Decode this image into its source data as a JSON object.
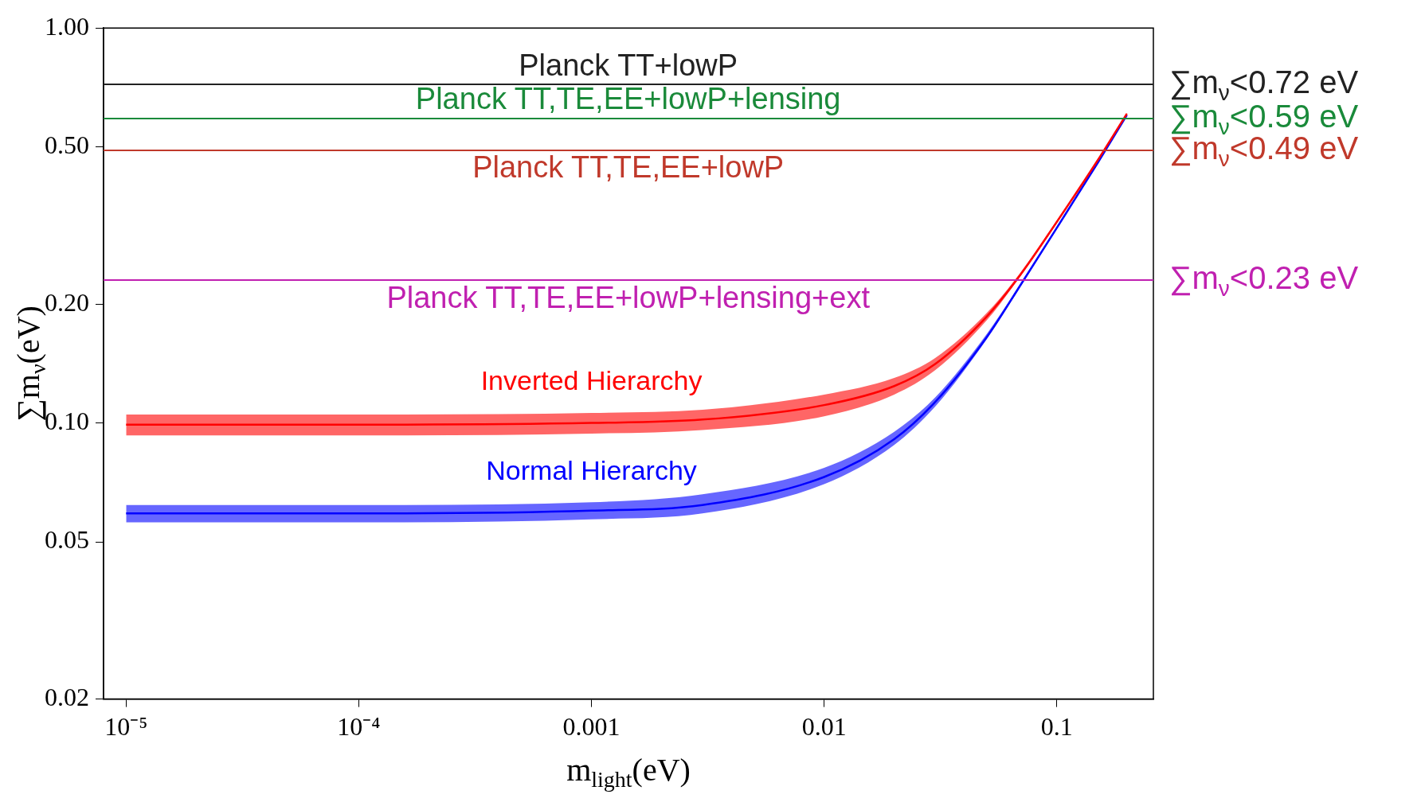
{
  "chart_data": {
    "type": "line",
    "xlabel": "m$_{light}$(eV)",
    "ylabel": "∑m$_{ν}$(eV)",
    "log": "xy",
    "x": [
      1e-05,
      0.0001,
      0.001,
      0.003,
      0.01,
      0.02,
      0.03,
      0.05,
      0.07,
      0.1,
      0.15,
      0.2
    ],
    "xlim": [
      8e-06,
      0.26
    ],
    "ylim": [
      0.02,
      1
    ],
    "xticks": [
      {
        "value": 1e-05,
        "label": "10⁻⁵"
      },
      {
        "value": 0.0001,
        "label": "10⁻⁴"
      },
      0.001,
      0.01,
      0.1
    ],
    "yticks": [
      {
        "value": 0.02,
        "label": "0.02"
      },
      {
        "value": 0.05,
        "label": "0.05"
      },
      {
        "value": 0.1,
        "label": "0.10"
      },
      {
        "value": 0.2,
        "label": "0.20"
      },
      {
        "value": 0.5,
        "label": "0.50"
      },
      {
        "value": 1,
        "label": "1.00"
      }
    ],
    "series": [
      {
        "name": "Inverted Hierarchy",
        "color": "#ff0000",
        "values": [
          0.099,
          0.099,
          0.1,
          0.102,
          0.111,
          0.124,
          0.141,
          0.186,
          0.238,
          0.323,
          0.463,
          0.607
        ],
        "lower": [
          0.093,
          0.093,
          0.094,
          0.096,
          0.104,
          0.118,
          0.136,
          0.182,
          0.236,
          0.32,
          0.462,
          0.605
        ],
        "upper": [
          0.105,
          0.105,
          0.106,
          0.108,
          0.118,
          0.13,
          0.146,
          0.19,
          0.241,
          0.326,
          0.465,
          0.61
        ]
      },
      {
        "name": "Normal Hierarchy",
        "color": "#0000ff",
        "values": [
          0.059,
          0.059,
          0.06,
          0.062,
          0.073,
          0.091,
          0.113,
          0.165,
          0.224,
          0.312,
          0.456,
          0.602
        ],
        "lower": [
          0.056,
          0.056,
          0.057,
          0.059,
          0.07,
          0.088,
          0.11,
          0.163,
          0.222,
          0.31,
          0.455,
          0.6
        ],
        "upper": [
          0.062,
          0.062,
          0.063,
          0.066,
          0.077,
          0.095,
          0.116,
          0.168,
          0.226,
          0.314,
          0.458,
          0.605
        ]
      }
    ],
    "ref_lines": [
      {
        "axis": "y",
        "value": 0.72,
        "label": "Planck TT+lowP",
        "color": "#222222"
      },
      {
        "axis": "y",
        "value": 0.59,
        "label": "Planck TT,TE,EE+lowP+lensing",
        "color": "#1a8a3a"
      },
      {
        "axis": "y",
        "value": 0.49,
        "label": "Planck TT,TE,EE+lowP",
        "color": "#c0392b"
      },
      {
        "axis": "y",
        "value": 0.23,
        "label": "Planck TT,TE,EE+lowP+lensing+ext",
        "color": "#c020b0"
      }
    ],
    "annotations": [
      "∑m$_{ν}$<0.72 eV",
      "∑m$_{ν}$<0.59 eV",
      "∑m$_{ν}$<0.49 eV",
      "∑m$_{ν}$<0.23 eV"
    ]
  }
}
